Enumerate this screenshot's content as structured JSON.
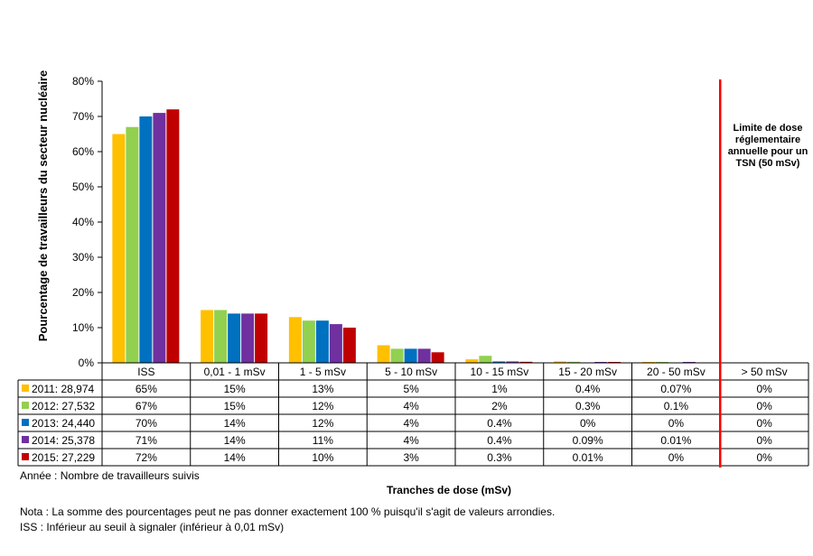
{
  "chart_data": {
    "type": "bar",
    "ylabel": "Pourcentage de travailleurs du secteur nucléaire",
    "xlabel": "Tranches de dose (mSv)",
    "ylim": [
      0,
      80
    ],
    "yticks": [
      "0%",
      "10%",
      "20%",
      "30%",
      "40%",
      "50%",
      "60%",
      "70%",
      "80%"
    ],
    "categories": [
      "ISS",
      "0,01 - 1 mSv",
      "1 - 5 mSv",
      "5 - 10 mSv",
      "10 - 15 mSv",
      "15 - 20 mSv",
      "20 - 50 mSv",
      "> 50 mSv"
    ],
    "series": [
      {
        "name": "2011: 28,974",
        "color": "#FFC000",
        "values": [
          65,
          15,
          13,
          5,
          1,
          0.4,
          0.07,
          0
        ],
        "labels": [
          "65%",
          "15%",
          "13%",
          "5%",
          "1%",
          "0.4%",
          "0.07%",
          "0%"
        ]
      },
      {
        "name": "2012: 27,532",
        "color": "#92D050",
        "values": [
          67,
          15,
          12,
          4,
          2,
          0.3,
          0.1,
          0
        ],
        "labels": [
          "67%",
          "15%",
          "12%",
          "4%",
          "2%",
          "0.3%",
          "0.1%",
          "0%"
        ]
      },
      {
        "name": "2013: 24,440",
        "color": "#0070C0",
        "values": [
          70,
          14,
          12,
          4,
          0.4,
          0,
          0,
          0
        ],
        "labels": [
          "70%",
          "14%",
          "12%",
          "4%",
          "0.4%",
          "0%",
          "0%",
          "0%"
        ]
      },
      {
        "name": "2014: 25,378",
        "color": "#7030A0",
        "values": [
          71,
          14,
          11,
          4,
          0.4,
          0.09,
          0.01,
          0
        ],
        "labels": [
          "71%",
          "14%",
          "11%",
          "4%",
          "0.4%",
          "0.09%",
          "0.01%",
          "0%"
        ]
      },
      {
        "name": "2015: 27,229",
        "color": "#C00000",
        "values": [
          72,
          14,
          10,
          3,
          0.3,
          0.01,
          0,
          0
        ],
        "labels": [
          "72%",
          "14%",
          "10%",
          "3%",
          "0.3%",
          "0.01%",
          "0%",
          "0%"
        ]
      }
    ],
    "limit_line": {
      "color": "#FF0000",
      "text": "Limite de dose réglementaire annuelle pour un TSN (50 mSv)"
    },
    "grid": false,
    "legend": "data-table"
  },
  "notes": {
    "legend_caption": "Année : Nombre de travailleurs suivis",
    "nota": "Nota : La somme des pourcentages peut ne pas donner exactement 100 % puisqu'il s'agit de valeurs arrondies.",
    "iss": "ISS : Inférieur au seuil à signaler (inférieur à 0,01 mSv)"
  }
}
